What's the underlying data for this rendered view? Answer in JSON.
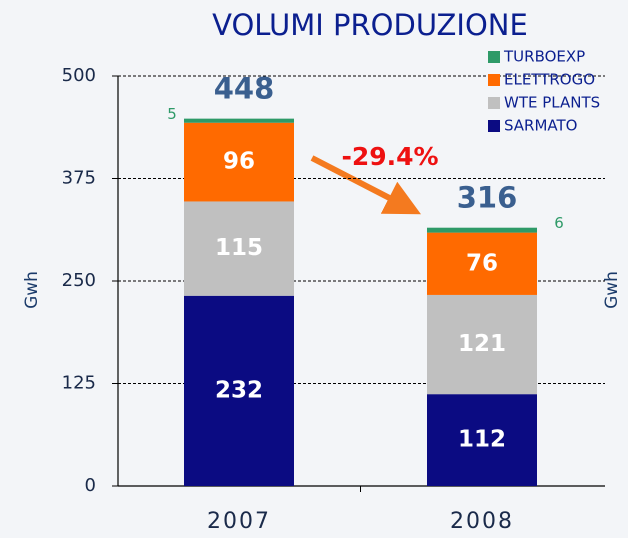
{
  "chart_data": {
    "type": "stacked_bar",
    "title": "VOLUMI PRODUZIONE",
    "ylabel": "Gwh",
    "y2label": "Gwh",
    "categories": [
      "2007",
      "2008"
    ],
    "series": [
      {
        "name": "SARMATO",
        "color": "#0b0b82",
        "values": [
          232,
          112
        ]
      },
      {
        "name": "WTE PLANTS",
        "color": "#c0c0c0",
        "values": [
          115,
          121
        ]
      },
      {
        "name": "ELETTROGO",
        "color": "#ff6a00",
        "values": [
          96,
          76
        ]
      },
      {
        "name": "TURBOEXP",
        "color": "#2e9a68",
        "values": [
          5,
          6
        ]
      }
    ],
    "totals": [
      448,
      316
    ],
    "annotations": [
      "-29.4%"
    ],
    "ylim": [
      0,
      500
    ],
    "yticks": [
      0,
      125,
      250,
      375,
      500
    ],
    "grid": true,
    "legend": "upper right"
  }
}
